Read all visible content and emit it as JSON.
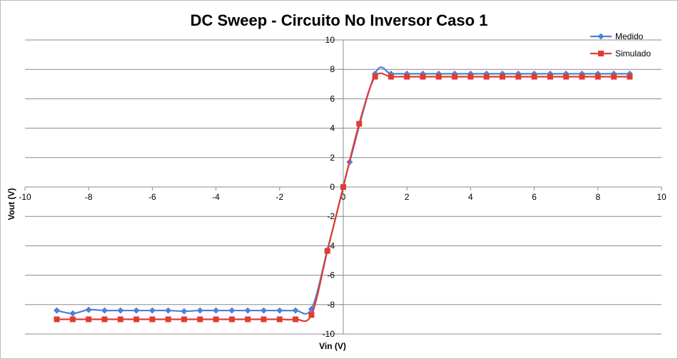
{
  "chart_data": {
    "type": "line",
    "title": "DC Sweep - Circuito No Inversor Caso 1",
    "xlabel": "Vin (V)",
    "ylabel": "Vout (V)",
    "xlim": [
      -10,
      10
    ],
    "ylim": [
      -10,
      10
    ],
    "x_ticks": [
      -10,
      -8,
      -6,
      -4,
      -2,
      0,
      2,
      4,
      6,
      8,
      10
    ],
    "y_ticks": [
      -10,
      -8,
      -6,
      -4,
      -2,
      0,
      2,
      4,
      6,
      8,
      10
    ],
    "x_tick_labels": [
      "-10",
      "-8",
      "-6",
      "-4",
      "-2",
      "0",
      "2",
      "4",
      "6",
      "8",
      "10"
    ],
    "y_tick_labels": [
      "-10",
      "-8",
      "-6",
      "-4",
      "-2",
      "0",
      "2",
      "4",
      "6",
      "8",
      "10"
    ],
    "grid": "horizontal major",
    "legend_position": "top-right",
    "series": [
      {
        "name": "Medido",
        "color": "#4f81d6",
        "marker": "diamond",
        "points": [
          [
            -9,
            -8.4
          ],
          [
            -8.5,
            -8.6
          ],
          [
            -8,
            -8.35
          ],
          [
            -7.5,
            -8.4
          ],
          [
            -7,
            -8.4
          ],
          [
            -6.5,
            -8.4
          ],
          [
            -6,
            -8.4
          ],
          [
            -5.5,
            -8.4
          ],
          [
            -5,
            -8.45
          ],
          [
            -4.5,
            -8.4
          ],
          [
            -4,
            -8.4
          ],
          [
            -3.5,
            -8.4
          ],
          [
            -3,
            -8.4
          ],
          [
            -2.5,
            -8.4
          ],
          [
            -2,
            -8.4
          ],
          [
            -1.5,
            -8.4
          ],
          [
            -1,
            -8.3
          ],
          [
            -0.5,
            -4.3
          ],
          [
            0,
            0
          ],
          [
            0.2,
            1.7
          ],
          [
            1,
            7.7
          ],
          [
            1.5,
            7.7
          ],
          [
            2,
            7.7
          ],
          [
            2.5,
            7.7
          ],
          [
            3,
            7.7
          ],
          [
            3.5,
            7.7
          ],
          [
            4,
            7.7
          ],
          [
            4.5,
            7.7
          ],
          [
            5,
            7.7
          ],
          [
            5.5,
            7.7
          ],
          [
            6,
            7.7
          ],
          [
            6.5,
            7.7
          ],
          [
            7,
            7.7
          ],
          [
            7.5,
            7.7
          ],
          [
            8,
            7.7
          ],
          [
            8.5,
            7.7
          ],
          [
            9,
            7.7
          ]
        ]
      },
      {
        "name": "Simulado",
        "color": "#e03c31",
        "marker": "square",
        "points": [
          [
            -9,
            -9
          ],
          [
            -8.5,
            -9
          ],
          [
            -8,
            -9
          ],
          [
            -7.5,
            -9
          ],
          [
            -7,
            -9
          ],
          [
            -6.5,
            -9
          ],
          [
            -6,
            -9
          ],
          [
            -5.5,
            -9
          ],
          [
            -5,
            -9
          ],
          [
            -4.5,
            -9
          ],
          [
            -4,
            -9
          ],
          [
            -3.5,
            -9
          ],
          [
            -3,
            -9
          ],
          [
            -2.5,
            -9
          ],
          [
            -2,
            -9
          ],
          [
            -1.5,
            -9
          ],
          [
            -1,
            -8.7
          ],
          [
            -0.5,
            -4.35
          ],
          [
            0,
            0
          ],
          [
            0.5,
            4.3
          ],
          [
            1,
            7.5
          ],
          [
            1.5,
            7.5
          ],
          [
            2,
            7.5
          ],
          [
            2.5,
            7.5
          ],
          [
            3,
            7.5
          ],
          [
            3.5,
            7.5
          ],
          [
            4,
            7.5
          ],
          [
            4.5,
            7.5
          ],
          [
            5,
            7.5
          ],
          [
            5.5,
            7.5
          ],
          [
            6,
            7.5
          ],
          [
            6.5,
            7.5
          ],
          [
            7,
            7.5
          ],
          [
            7.5,
            7.5
          ],
          [
            8,
            7.5
          ],
          [
            8.5,
            7.5
          ],
          [
            9,
            7.5
          ]
        ]
      }
    ]
  }
}
